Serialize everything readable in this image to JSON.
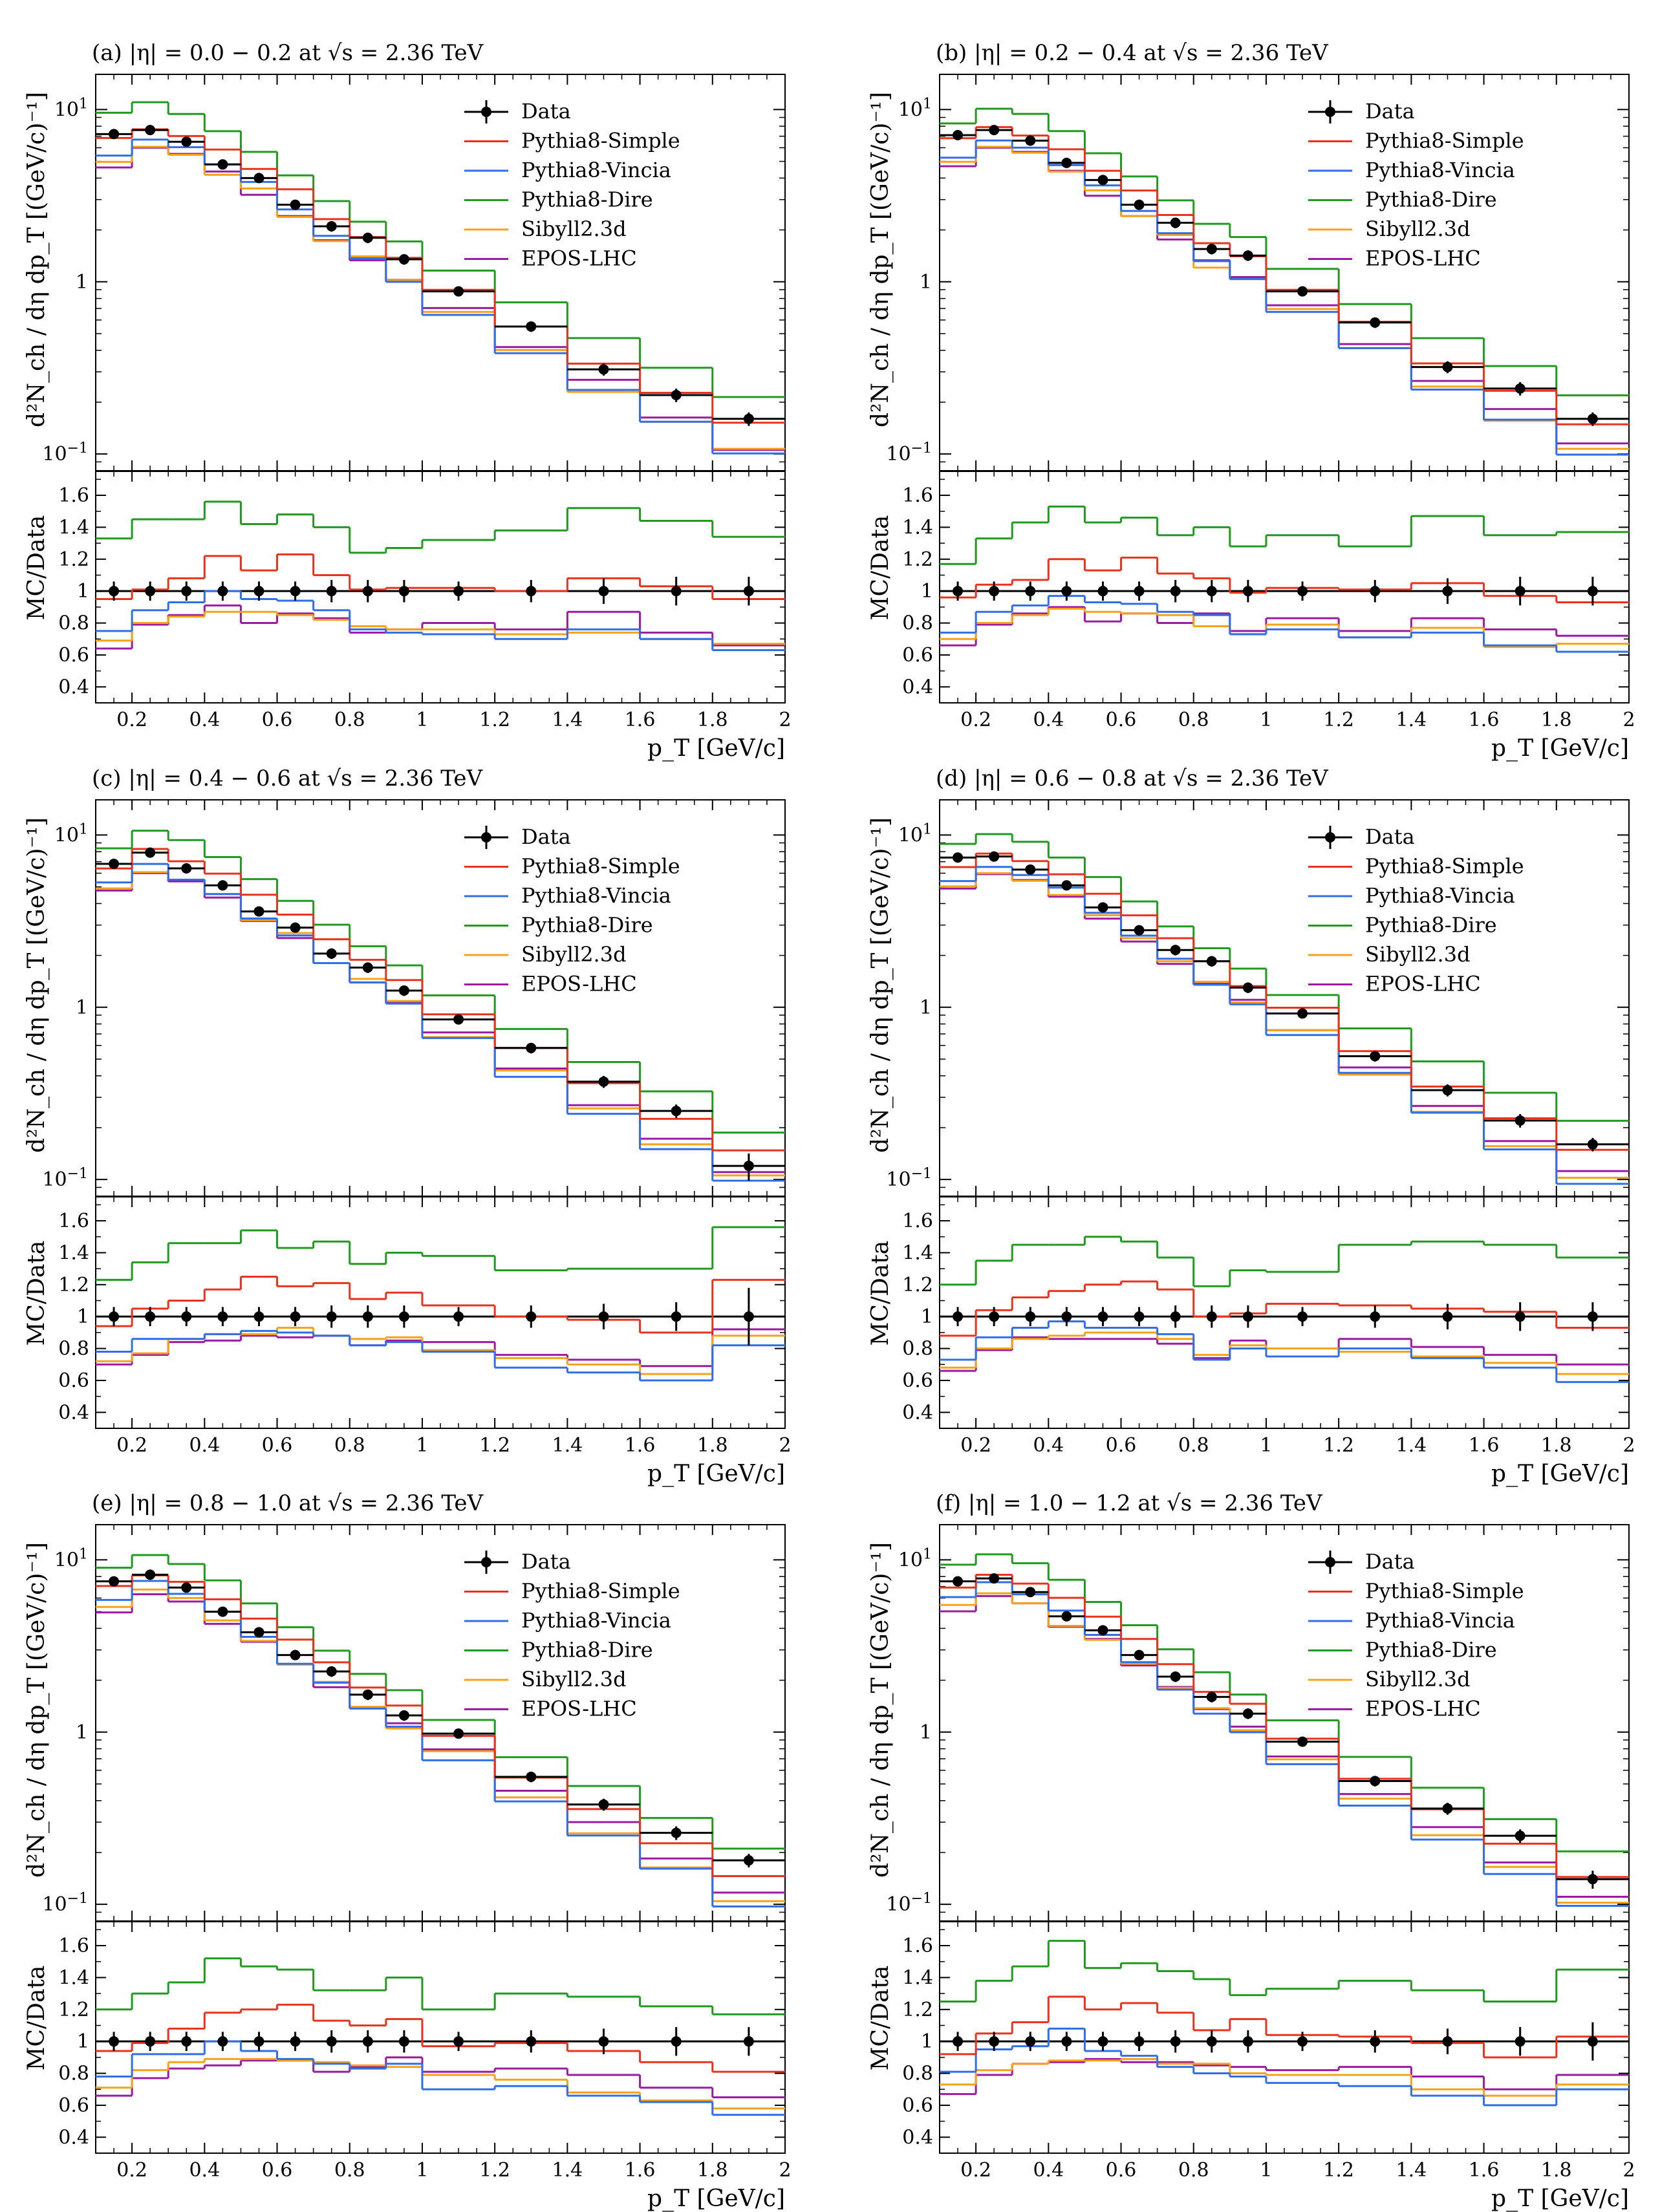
{
  "figure": {
    "x_bins": [
      0.1,
      0.2,
      0.3,
      0.4,
      0.5,
      0.6,
      0.7,
      0.8,
      0.9,
      1.0,
      1.2,
      1.4,
      1.6,
      1.8,
      2.0
    ],
    "xlim": [
      0.1,
      2.0
    ],
    "x_ticks": [
      "0.2",
      "0.4",
      "0.6",
      "0.8",
      "1",
      "1.2",
      "1.4",
      "1.6",
      "1.8",
      "2"
    ],
    "main_ylim": [
      0.08,
      16
    ],
    "main_y_ticks": [
      {
        "value": 10,
        "mantissa": "10",
        "exp": "1"
      },
      {
        "value": 1,
        "mantissa": "1",
        "exp": ""
      },
      {
        "value": 0.1,
        "mantissa": "10",
        "exp": "−1"
      }
    ],
    "ratio_ylim": [
      0.3,
      1.75
    ],
    "ratio_y_ticks": [
      "0.4",
      "0.6",
      "0.8",
      "1",
      "1.2",
      "1.4",
      "1.6"
    ],
    "ylabel_main": "d²N_ch / dη dp_T [(GeV/c)⁻¹]",
    "ylabel_ratio": "MC/Data",
    "xlabel": "p_T [GeV/c]",
    "legend": [
      {
        "key": "data",
        "label": "Data",
        "color": "#000000"
      },
      {
        "key": "simple",
        "label": "Pythia8-Simple",
        "color": "#e8321e"
      },
      {
        "key": "vincia",
        "label": "Pythia8-Vincia",
        "color": "#2f6ee8"
      },
      {
        "key": "dire",
        "label": "Pythia8-Dire",
        "color": "#1f9a1f"
      },
      {
        "key": "sibyll",
        "label": "Sibyll2.3d",
        "color": "#f5a21a"
      },
      {
        "key": "epos",
        "label": "EPOS-LHC",
        "color": "#9a1aa0"
      }
    ]
  },
  "chart_data": [
    {
      "type": "line",
      "title": "(a) |η| = 0.0 − 0.2 at √s = 2.36 TeV",
      "xlabel": "p_T [GeV/c]",
      "data": [
        7.2,
        7.6,
        6.5,
        4.8,
        4.0,
        2.8,
        2.1,
        1.8,
        1.35,
        0.88,
        0.55,
        0.31,
        0.22,
        0.16
      ],
      "data_err": [
        0.06,
        0.06,
        0.06,
        0.06,
        0.06,
        0.06,
        0.07,
        0.07,
        0.07,
        0.06,
        0.07,
        0.08,
        0.09,
        0.09
      ],
      "series": [
        {
          "name": "Pythia8-Simple",
          "ratio": [
            0.95,
            1.01,
            1.08,
            1.22,
            1.13,
            1.23,
            1.1,
            1.01,
            1.02,
            1.02,
            1.0,
            1.08,
            1.03,
            0.95
          ]
        },
        {
          "name": "Pythia8-Vincia",
          "ratio": [
            0.75,
            0.88,
            0.93,
            1.0,
            0.95,
            0.94,
            0.88,
            0.76,
            0.74,
            0.73,
            0.7,
            0.76,
            0.7,
            0.63
          ]
        },
        {
          "name": "Pythia8-Dire",
          "ratio": [
            1.33,
            1.45,
            1.45,
            1.56,
            1.42,
            1.48,
            1.4,
            1.24,
            1.27,
            1.32,
            1.38,
            1.52,
            1.44,
            1.34
          ]
        },
        {
          "name": "Sibyll2.3d",
          "ratio": [
            0.69,
            0.8,
            0.84,
            0.87,
            0.87,
            0.85,
            0.82,
            0.78,
            0.76,
            0.76,
            0.73,
            0.74,
            0.7,
            0.67
          ]
        },
        {
          "name": "EPOS-LHC",
          "ratio": [
            0.64,
            0.79,
            0.85,
            0.91,
            0.8,
            0.86,
            0.83,
            0.74,
            0.76,
            0.8,
            0.76,
            0.87,
            0.74,
            0.66
          ]
        }
      ]
    },
    {
      "type": "line",
      "title": "(b) |η| = 0.2 − 0.4 at √s = 2.36 TeV",
      "xlabel": "p_T [GeV/c]",
      "data": [
        7.1,
        7.6,
        6.6,
        4.9,
        3.9,
        2.8,
        2.2,
        1.55,
        1.42,
        0.88,
        0.58,
        0.32,
        0.24,
        0.16
      ],
      "data_err": [
        0.06,
        0.06,
        0.06,
        0.06,
        0.06,
        0.06,
        0.07,
        0.07,
        0.07,
        0.06,
        0.07,
        0.08,
        0.09,
        0.09
      ],
      "series": [
        {
          "name": "Pythia8-Simple",
          "ratio": [
            0.96,
            1.04,
            1.07,
            1.2,
            1.13,
            1.21,
            1.11,
            1.08,
            0.99,
            1.02,
            1.01,
            1.05,
            0.97,
            0.93
          ]
        },
        {
          "name": "Pythia8-Vincia",
          "ratio": [
            0.74,
            0.87,
            0.91,
            0.97,
            0.93,
            0.92,
            0.87,
            0.85,
            0.73,
            0.76,
            0.71,
            0.74,
            0.66,
            0.62
          ]
        },
        {
          "name": "Pythia8-Dire",
          "ratio": [
            1.17,
            1.33,
            1.43,
            1.53,
            1.43,
            1.46,
            1.35,
            1.4,
            1.28,
            1.35,
            1.28,
            1.47,
            1.35,
            1.37
          ]
        },
        {
          "name": "Sibyll2.3d",
          "ratio": [
            0.7,
            0.8,
            0.85,
            0.89,
            0.87,
            0.86,
            0.85,
            0.78,
            0.73,
            0.79,
            0.71,
            0.77,
            0.65,
            0.67
          ]
        },
        {
          "name": "EPOS-LHC",
          "ratio": [
            0.66,
            0.79,
            0.86,
            0.9,
            0.81,
            0.86,
            0.8,
            0.86,
            0.75,
            0.83,
            0.75,
            0.83,
            0.76,
            0.72
          ]
        }
      ]
    },
    {
      "type": "line",
      "title": "(c) |η| = 0.4 − 0.6 at √s = 2.36 TeV",
      "xlabel": "p_T [GeV/c]",
      "data": [
        6.8,
        7.9,
        6.4,
        5.1,
        3.6,
        2.9,
        2.05,
        1.7,
        1.25,
        0.85,
        0.58,
        0.37,
        0.25,
        0.12
      ],
      "data_err": [
        0.06,
        0.06,
        0.06,
        0.06,
        0.06,
        0.06,
        0.07,
        0.07,
        0.07,
        0.06,
        0.07,
        0.08,
        0.09,
        0.18
      ],
      "series": [
        {
          "name": "Pythia8-Simple",
          "ratio": [
            0.94,
            1.05,
            1.1,
            1.17,
            1.25,
            1.19,
            1.21,
            1.11,
            1.15,
            1.07,
            1.0,
            0.98,
            0.9,
            1.23
          ]
        },
        {
          "name": "Pythia8-Vincia",
          "ratio": [
            0.78,
            0.86,
            0.86,
            0.89,
            0.91,
            0.9,
            0.88,
            0.82,
            0.84,
            0.78,
            0.68,
            0.65,
            0.6,
            0.82
          ]
        },
        {
          "name": "Pythia8-Dire",
          "ratio": [
            1.23,
            1.34,
            1.46,
            1.46,
            1.54,
            1.43,
            1.47,
            1.33,
            1.4,
            1.38,
            1.29,
            1.3,
            1.3,
            1.56
          ]
        },
        {
          "name": "Sibyll2.3d",
          "ratio": [
            0.72,
            0.77,
            0.86,
            0.89,
            0.89,
            0.93,
            0.88,
            0.86,
            0.87,
            0.79,
            0.74,
            0.7,
            0.64,
            0.88
          ]
        },
        {
          "name": "EPOS-LHC",
          "ratio": [
            0.7,
            0.76,
            0.84,
            0.85,
            0.88,
            0.87,
            0.88,
            0.82,
            0.85,
            0.84,
            0.76,
            0.73,
            0.69,
            0.92
          ]
        }
      ]
    },
    {
      "type": "line",
      "title": "(d) |η| = 0.6 − 0.8 at √s = 2.36 TeV",
      "xlabel": "p_T [GeV/c]",
      "data": [
        7.4,
        7.5,
        6.3,
        5.1,
        3.8,
        2.8,
        2.15,
        1.85,
        1.3,
        0.92,
        0.52,
        0.33,
        0.22,
        0.16
      ],
      "data_err": [
        0.06,
        0.06,
        0.06,
        0.06,
        0.06,
        0.06,
        0.07,
        0.07,
        0.07,
        0.06,
        0.07,
        0.08,
        0.09,
        0.09
      ],
      "series": [
        {
          "name": "Pythia8-Simple",
          "ratio": [
            0.88,
            1.04,
            1.12,
            1.16,
            1.2,
            1.22,
            1.17,
            1.0,
            1.02,
            1.08,
            1.07,
            1.05,
            1.03,
            0.93
          ]
        },
        {
          "name": "Pythia8-Vincia",
          "ratio": [
            0.73,
            0.87,
            0.93,
            0.97,
            0.93,
            0.93,
            0.89,
            0.73,
            0.8,
            0.75,
            0.8,
            0.74,
            0.68,
            0.59
          ]
        },
        {
          "name": "Pythia8-Dire",
          "ratio": [
            1.2,
            1.35,
            1.45,
            1.45,
            1.5,
            1.47,
            1.37,
            1.19,
            1.29,
            1.28,
            1.45,
            1.47,
            1.45,
            1.37
          ]
        },
        {
          "name": "Sibyll2.3d",
          "ratio": [
            0.68,
            0.8,
            0.86,
            0.88,
            0.9,
            0.9,
            0.86,
            0.76,
            0.82,
            0.8,
            0.78,
            0.75,
            0.71,
            0.64
          ]
        },
        {
          "name": "EPOS-LHC",
          "ratio": [
            0.66,
            0.79,
            0.87,
            0.86,
            0.86,
            0.86,
            0.83,
            0.74,
            0.85,
            0.8,
            0.86,
            0.81,
            0.76,
            0.7
          ]
        }
      ]
    },
    {
      "type": "line",
      "title": "(e) |η| = 0.8 − 1.0 at √s = 2.36 TeV",
      "xlabel": "p_T [GeV/c]",
      "data": [
        7.5,
        8.2,
        6.9,
        5.0,
        3.8,
        2.8,
        2.25,
        1.65,
        1.25,
        0.98,
        0.55,
        0.38,
        0.26,
        0.18
      ],
      "data_err": [
        0.06,
        0.06,
        0.06,
        0.06,
        0.06,
        0.06,
        0.07,
        0.07,
        0.07,
        0.06,
        0.07,
        0.08,
        0.09,
        0.09
      ],
      "series": [
        {
          "name": "Pythia8-Simple",
          "ratio": [
            0.94,
            0.99,
            1.08,
            1.18,
            1.2,
            1.23,
            1.13,
            1.1,
            1.14,
            0.97,
            0.99,
            0.94,
            0.87,
            0.81
          ]
        },
        {
          "name": "Pythia8-Vincia",
          "ratio": [
            0.78,
            0.92,
            0.92,
            1.0,
            0.94,
            0.89,
            0.86,
            0.83,
            0.86,
            0.7,
            0.72,
            0.66,
            0.62,
            0.54
          ]
        },
        {
          "name": "Pythia8-Dire",
          "ratio": [
            1.2,
            1.3,
            1.37,
            1.52,
            1.47,
            1.45,
            1.32,
            1.32,
            1.4,
            1.2,
            1.3,
            1.28,
            1.22,
            1.17
          ]
        },
        {
          "name": "Sibyll2.3d",
          "ratio": [
            0.71,
            0.82,
            0.87,
            0.89,
            0.89,
            0.88,
            0.87,
            0.85,
            0.84,
            0.79,
            0.76,
            0.68,
            0.63,
            0.58
          ]
        },
        {
          "name": "EPOS-LHC",
          "ratio": [
            0.66,
            0.77,
            0.83,
            0.85,
            0.88,
            0.88,
            0.81,
            0.84,
            0.9,
            0.81,
            0.83,
            0.79,
            0.71,
            0.65
          ]
        }
      ]
    },
    {
      "type": "line",
      "title": "(f) |η| = 1.0 − 1.2 at √s = 2.36 TeV",
      "xlabel": "p_T [GeV/c]",
      "data": [
        7.5,
        7.8,
        6.5,
        4.7,
        3.9,
        2.8,
        2.1,
        1.6,
        1.28,
        0.88,
        0.52,
        0.36,
        0.25,
        0.14
      ],
      "data_err": [
        0.06,
        0.06,
        0.06,
        0.06,
        0.06,
        0.06,
        0.07,
        0.07,
        0.07,
        0.06,
        0.07,
        0.08,
        0.09,
        0.12
      ],
      "series": [
        {
          "name": "Pythia8-Simple",
          "ratio": [
            0.92,
            1.05,
            1.12,
            1.28,
            1.2,
            1.24,
            1.18,
            1.07,
            1.14,
            1.04,
            1.03,
            0.99,
            0.9,
            1.03
          ]
        },
        {
          "name": "Pythia8-Vincia",
          "ratio": [
            0.81,
            0.95,
            0.97,
            1.08,
            0.94,
            0.91,
            0.84,
            0.8,
            0.78,
            0.74,
            0.72,
            0.66,
            0.6,
            0.7
          ]
        },
        {
          "name": "Pythia8-Dire",
          "ratio": [
            1.25,
            1.38,
            1.47,
            1.63,
            1.46,
            1.49,
            1.44,
            1.39,
            1.29,
            1.33,
            1.38,
            1.32,
            1.25,
            1.45
          ]
        },
        {
          "name": "Sibyll2.3d",
          "ratio": [
            0.73,
            0.82,
            0.86,
            0.88,
            0.88,
            0.89,
            0.86,
            0.86,
            0.8,
            0.79,
            0.79,
            0.7,
            0.66,
            0.73
          ]
        },
        {
          "name": "EPOS-LHC",
          "ratio": [
            0.67,
            0.79,
            0.86,
            0.87,
            0.89,
            0.87,
            0.87,
            0.85,
            0.84,
            0.82,
            0.84,
            0.78,
            0.7,
            0.79
          ]
        }
      ]
    }
  ]
}
